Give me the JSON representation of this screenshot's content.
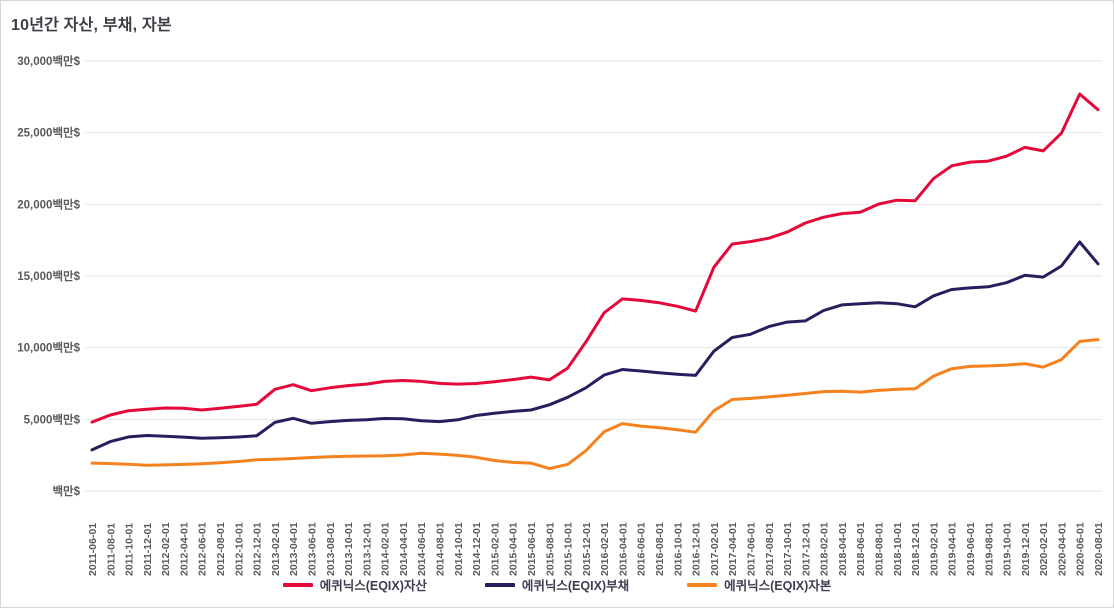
{
  "title": "10년간 자산, 부채, 자본",
  "chart_data": {
    "type": "line",
    "title": "10년간 자산, 부채, 자본",
    "unit": "백만$",
    "ylim": [
      0,
      30000
    ],
    "grid": "horizontal-only",
    "legend_position": "bottom",
    "y_ticks": [
      {
        "value": 0,
        "label": "백만$"
      },
      {
        "value": 5000,
        "label": "5,000백만$"
      },
      {
        "value": 10000,
        "label": "10,000백만$"
      },
      {
        "value": 15000,
        "label": "15,000백만$"
      },
      {
        "value": 20000,
        "label": "20,000백만$"
      },
      {
        "value": 25000,
        "label": "25,000백만$"
      },
      {
        "value": 30000,
        "label": "30,000백만$"
      }
    ],
    "x_labels": [
      "2011-06-01",
      "2011-08-01",
      "2011-10-01",
      "2011-12-01",
      "2012-02-01",
      "2012-04-01",
      "2012-06-01",
      "2012-08-01",
      "2012-10-01",
      "2012-12-01",
      "2013-02-01",
      "2013-04-01",
      "2013-06-01",
      "2013-08-01",
      "2013-10-01",
      "2013-12-01",
      "2014-02-01",
      "2014-04-01",
      "2014-06-01",
      "2014-08-01",
      "2014-10-01",
      "2014-12-01",
      "2015-02-01",
      "2015-04-01",
      "2015-06-01",
      "2015-08-01",
      "2015-10-01",
      "2015-12-01",
      "2016-02-01",
      "2016-04-01",
      "2016-06-01",
      "2016-08-01",
      "2016-10-01",
      "2016-12-01",
      "2017-02-01",
      "2017-04-01",
      "2017-06-01",
      "2017-08-01",
      "2017-10-01",
      "2017-12-01",
      "2018-02-01",
      "2018-04-01",
      "2018-06-01",
      "2018-08-01",
      "2018-10-01",
      "2018-12-01",
      "2019-02-01",
      "2019-04-01",
      "2019-06-01",
      "2019-08-01",
      "2019-10-01",
      "2019-12-01",
      "2020-02-01",
      "2020-04-01",
      "2020-06-01",
      "2020-08-01"
    ],
    "series": [
      {
        "id": "assets",
        "name": "에퀴닉스(EQIX)자산",
        "color": "#e4093a",
        "values": [
          4810,
          5300,
          5600,
          5700,
          5790,
          5775,
          5650,
          5775,
          5905,
          6050,
          7095,
          7415,
          7000,
          7200,
          7355,
          7460,
          7645,
          7710,
          7650,
          7505,
          7455,
          7500,
          7625,
          7775,
          7950,
          7750,
          8565,
          10400,
          12435,
          13400,
          13300,
          13135,
          12885,
          12550,
          15615,
          17235,
          17400,
          17635,
          18065,
          18700,
          19100,
          19350,
          19450,
          20015,
          20285,
          20250,
          21785,
          22685,
          22950,
          23015,
          23355,
          23970,
          23725,
          24965,
          27700,
          26600
        ]
      },
      {
        "id": "liabilities",
        "name": "에퀴닉스(EQIX)부채",
        "color": "#251f5e",
        "values": [
          2870,
          3445,
          3775,
          3870,
          3825,
          3760,
          3680,
          3715,
          3770,
          3850,
          4785,
          5075,
          4720,
          4840,
          4925,
          4975,
          5060,
          5035,
          4900,
          4845,
          4970,
          5270,
          5425,
          5550,
          5650,
          6015,
          6535,
          7200,
          8085,
          8475,
          8370,
          8245,
          8140,
          8065,
          9755,
          10710,
          10930,
          11470,
          11785,
          11870,
          12590,
          12985,
          13060,
          13140,
          13070,
          12850,
          13615,
          14055,
          14170,
          14245,
          14535,
          15050,
          14925,
          15695,
          17370,
          15850
        ]
      },
      {
        "id": "equity",
        "name": "에퀴닉스(EQIX)자본",
        "color": "#f5821f",
        "values": [
          1950,
          1915,
          1865,
          1800,
          1820,
          1855,
          1900,
          1965,
          2060,
          2175,
          2210,
          2265,
          2340,
          2385,
          2420,
          2440,
          2455,
          2515,
          2630,
          2575,
          2485,
          2350,
          2130,
          1995,
          1950,
          1565,
          1855,
          2810,
          4130,
          4705,
          4530,
          4425,
          4280,
          4100,
          5600,
          6385,
          6460,
          6565,
          6680,
          6800,
          6935,
          6965,
          6900,
          7020,
          7095,
          7130,
          8010,
          8530,
          8690,
          8725,
          8785,
          8880,
          8645,
          9165,
          10440,
          10560
        ]
      }
    ]
  }
}
